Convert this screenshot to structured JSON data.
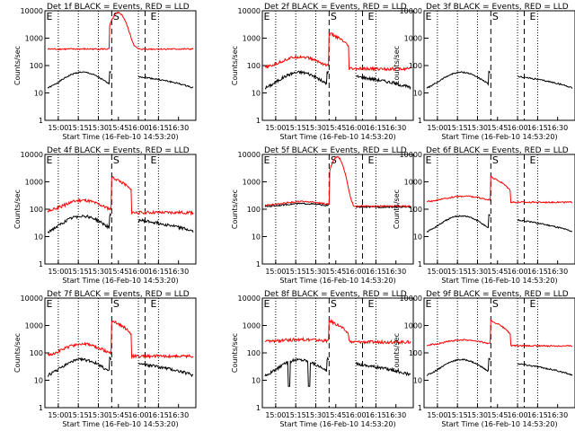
{
  "figure": {
    "panels": [
      {
        "title": "Det 1f BLACK = Events, RED = LLD",
        "flags": [
          "E",
          "S",
          "E"
        ],
        "variant": "flare"
      },
      {
        "title": "Det 2f BLACK = Events, RED = LLD",
        "flags": [
          "E",
          "S",
          "E"
        ],
        "variant": "noisy"
      },
      {
        "title": "Det 3f BLACK = Events, RED = LLD",
        "flags": [
          "E",
          "S",
          "E"
        ],
        "variant": "black-only"
      },
      {
        "title": "Det 4f BLACK = Events, RED = LLD",
        "flags": [
          "E",
          "S",
          "E"
        ],
        "variant": "noisy"
      },
      {
        "title": "Det 5f BLACK = Events, RED = LLD",
        "flags": [
          "E",
          "S",
          "E"
        ],
        "variant": "overlap"
      },
      {
        "title": "Det 6f BLACK = Events, RED = LLD",
        "flags": [
          "E",
          "S",
          "E"
        ],
        "variant": "high"
      },
      {
        "title": "Det 7f BLACK = Events, RED = LLD",
        "flags": [
          "E",
          "S",
          "E"
        ],
        "variant": "noisy"
      },
      {
        "title": "Det 8f BLACK = Events, RED = LLD",
        "flags": [
          "E",
          "S",
          "E"
        ],
        "variant": "spiky"
      },
      {
        "title": "Det 9f BLACK = Events, RED = LLD",
        "flags": [
          "E",
          "S",
          "E"
        ],
        "variant": "high"
      }
    ]
  },
  "chart_data": {
    "type": "line",
    "layout": "3x3 grid",
    "ylabel": "Counts/sec",
    "xlabel": "Start Time (16-Feb-10 14:53:20)",
    "yscale": "log",
    "ylim": [
      1,
      10000
    ],
    "yticks": [
      "1",
      "10",
      "100",
      "1000",
      "10000"
    ],
    "xticks": [
      "15:00",
      "15:15",
      "15:30",
      "15:45",
      "16:00",
      "16:15",
      "16:30"
    ],
    "xlim_minutes": [
      -10,
      103
    ],
    "dotted_lines_at": [
      "15:00",
      "15:15",
      "15:30",
      "16:00",
      "16:15"
    ],
    "dashed_lines_at": [
      "15:40",
      "16:05"
    ],
    "series": [
      {
        "name": "Events",
        "color": "#000000"
      },
      {
        "name": "LLD",
        "color": "#ff0000"
      }
    ]
  }
}
